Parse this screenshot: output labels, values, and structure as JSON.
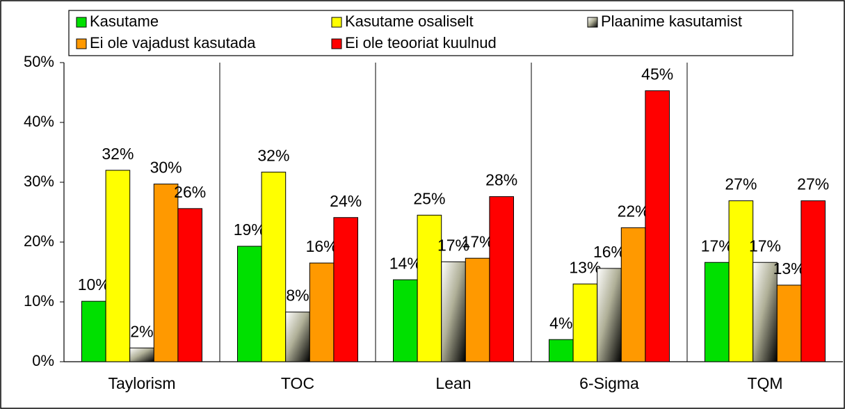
{
  "chart_data": {
    "type": "bar",
    "categories": [
      "Taylorism",
      "TOC",
      "Lean",
      "6-Sigma",
      "TQM"
    ],
    "series": [
      {
        "name": "Kasutame",
        "color": "#00e000",
        "values": [
          10.1,
          19.3,
          13.7,
          3.7,
          16.6
        ],
        "value_labels": [
          "10%",
          "19%",
          "14%",
          "4%",
          "17%"
        ]
      },
      {
        "name": "Kasutame osaliselt",
        "color": "#ffff00",
        "values": [
          32,
          31.7,
          24.5,
          13,
          26.9
        ],
        "value_labels": [
          "32%",
          "32%",
          "25%",
          "13%",
          "27%"
        ]
      },
      {
        "name": "Plaanime kasutamist",
        "color": "#b0b098",
        "values": [
          2.3,
          8.3,
          16.7,
          15.6,
          16.6
        ],
        "value_labels": [
          "2%",
          "8%",
          "17%",
          "16%",
          "17%"
        ]
      },
      {
        "name": "Ei ole vajadust kasutada",
        "color": "#ff9900",
        "values": [
          29.7,
          16.5,
          17.3,
          22.4,
          12.8
        ],
        "value_labels": [
          "30%",
          "16%",
          "17%",
          "22%",
          "13%"
        ]
      },
      {
        "name": "Ei ole teooriat kuulnud",
        "color": "#ff0000",
        "values": [
          25.6,
          24.1,
          27.6,
          45.3,
          26.9
        ],
        "value_labels": [
          "26%",
          "24%",
          "28%",
          "45%",
          "27%"
        ]
      }
    ],
    "ylim": [
      0,
      50
    ],
    "yticks": [
      {
        "value": 0,
        "label": "0%"
      },
      {
        "value": 10,
        "label": "10%"
      },
      {
        "value": 20,
        "label": "20%"
      },
      {
        "value": 30,
        "label": "30%"
      },
      {
        "value": 40,
        "label": "40%"
      },
      {
        "value": 50,
        "label": "50%"
      }
    ]
  }
}
